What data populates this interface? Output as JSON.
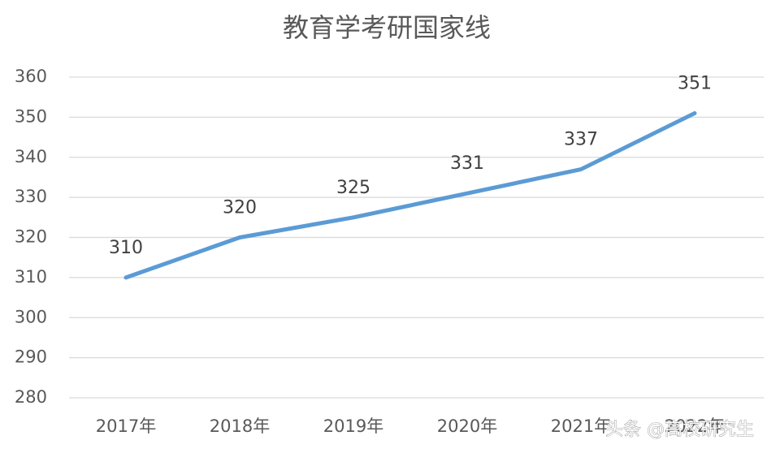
{
  "chart_data": {
    "type": "line",
    "title": "教育学考研国家线",
    "categories": [
      "2017年",
      "2018年",
      "2019年",
      "2020年",
      "2021年",
      "2022年"
    ],
    "values": [
      310,
      320,
      325,
      331,
      337,
      351
    ],
    "color": "#5b9bd5",
    "ylim": [
      280,
      360
    ],
    "yticks": [
      280,
      290,
      300,
      310,
      320,
      330,
      340,
      350,
      360
    ],
    "grid": true
  },
  "watermark": "头条 @高校研究生"
}
